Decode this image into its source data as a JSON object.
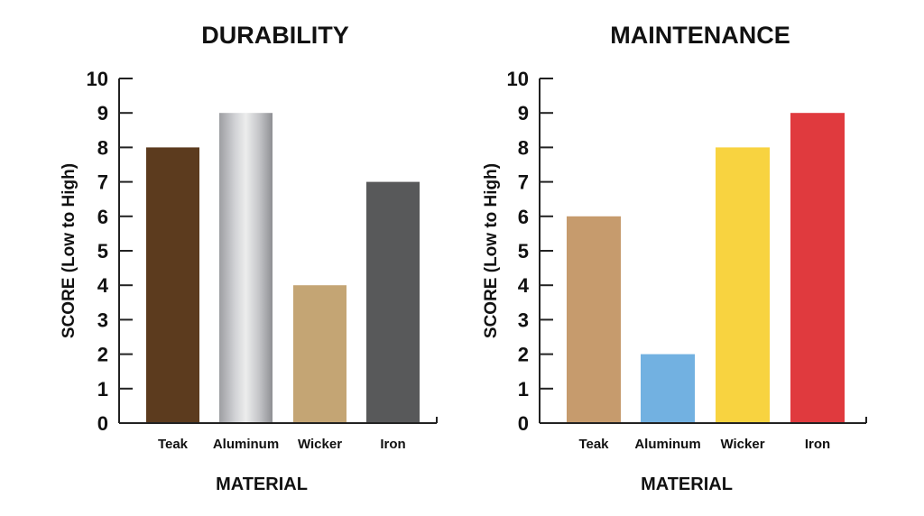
{
  "chart_data": [
    {
      "type": "bar",
      "title": "DURABILITY",
      "categories": [
        "Teak",
        "Aluminum",
        "Wicker",
        "Iron"
      ],
      "values": [
        8,
        9,
        4,
        7
      ],
      "colors": [
        "#5c3b1e",
        "aluminum-gradient",
        "#c4a574",
        "#58595a"
      ],
      "xlabel": "MATERIAL",
      "ylabel": "SCORE (Low to High)",
      "ylim": [
        0,
        10
      ],
      "yticks": [
        "0",
        "1",
        "2",
        "3",
        "4",
        "5",
        "6",
        "7",
        "8",
        "9",
        "10"
      ],
      "grid": false
    },
    {
      "type": "bar",
      "title": "MAINTENANCE",
      "categories": [
        "Teak",
        "Aluminum",
        "Wicker",
        "Iron"
      ],
      "values": [
        6,
        2,
        8,
        9
      ],
      "colors": [
        "#c69b6d",
        "#72b1e1",
        "#f8d340",
        "#e03a3e"
      ],
      "xlabel": "MATERIAL",
      "ylabel": "SCORE (Low to High)",
      "ylim": [
        0,
        10
      ],
      "yticks": [
        "0",
        "1",
        "2",
        "3",
        "4",
        "5",
        "6",
        "7",
        "8",
        "9",
        "10"
      ],
      "grid": false
    }
  ]
}
